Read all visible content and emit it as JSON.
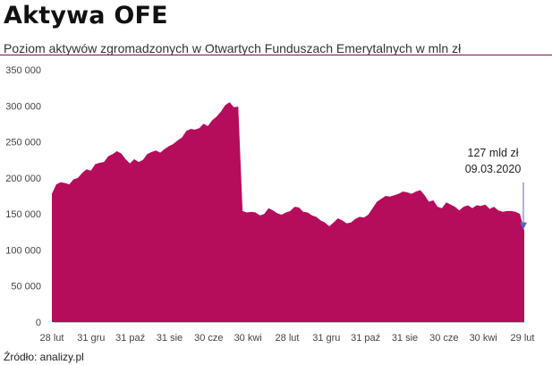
{
  "title": "Aktywa OFE",
  "subtitle": "Poziom aktywów zgromadzonych w Otwartych Funduszach Emerytalnych w mln zł",
  "source": "Źródło: analizy.pl",
  "colors": {
    "area": "#b50c5c",
    "rule": "#7a1050",
    "arrow": "#4a6fb5"
  },
  "chart_data": {
    "type": "area",
    "title": "Aktywa OFE",
    "xlabel": "",
    "ylabel": "",
    "ylim": [
      0,
      350000
    ],
    "yticks": [
      0,
      50000,
      100000,
      150000,
      200000,
      250000,
      300000,
      350000
    ],
    "ytick_labels": [
      "0",
      "50 000",
      "100 000",
      "150 000",
      "200 000",
      "250 000",
      "300 000",
      "350 000"
    ],
    "xticks": [
      "28 lut",
      "31 gru",
      "31 paź",
      "31 sie",
      "30 cze",
      "30 kwi",
      "28 lut",
      "31 gru",
      "31 paź",
      "31 sie",
      "30 cze",
      "30 kwi",
      "29 lut"
    ],
    "grid": false,
    "series": [
      {
        "values": [
          178000,
          191000,
          194000,
          193000,
          191000,
          198000,
          200000,
          207000,
          212000,
          210000,
          219000,
          221000,
          222000,
          230000,
          233000,
          237000,
          234000,
          226000,
          220000,
          226000,
          222000,
          225000,
          233000,
          236000,
          238000,
          235000,
          240000,
          244000,
          247000,
          252000,
          256000,
          265000,
          268000,
          267000,
          269000,
          275000,
          272000,
          280000,
          285000,
          292000,
          301000,
          305000,
          298000,
          299000,
          154000,
          152000,
          153000,
          152000,
          148000,
          150000,
          158000,
          155000,
          151000,
          149000,
          152000,
          154000,
          160000,
          159000,
          153000,
          152000,
          148000,
          146000,
          141000,
          138000,
          133000,
          138000,
          144000,
          141000,
          137000,
          138000,
          143000,
          146000,
          145000,
          149000,
          158000,
          167000,
          171000,
          175000,
          174000,
          176000,
          178000,
          181000,
          180000,
          178000,
          181000,
          183000,
          176000,
          167000,
          169000,
          160000,
          158000,
          166000,
          163000,
          160000,
          155000,
          160000,
          162000,
          158000,
          162000,
          161000,
          163000,
          157000,
          160000,
          155000,
          153000,
          154000,
          154000,
          153000,
          150000,
          127000
        ]
      }
    ],
    "annotations": [
      {
        "text_line1": "127 mld zł",
        "text_line2": "09.03.2020",
        "value": 127000
      }
    ]
  }
}
